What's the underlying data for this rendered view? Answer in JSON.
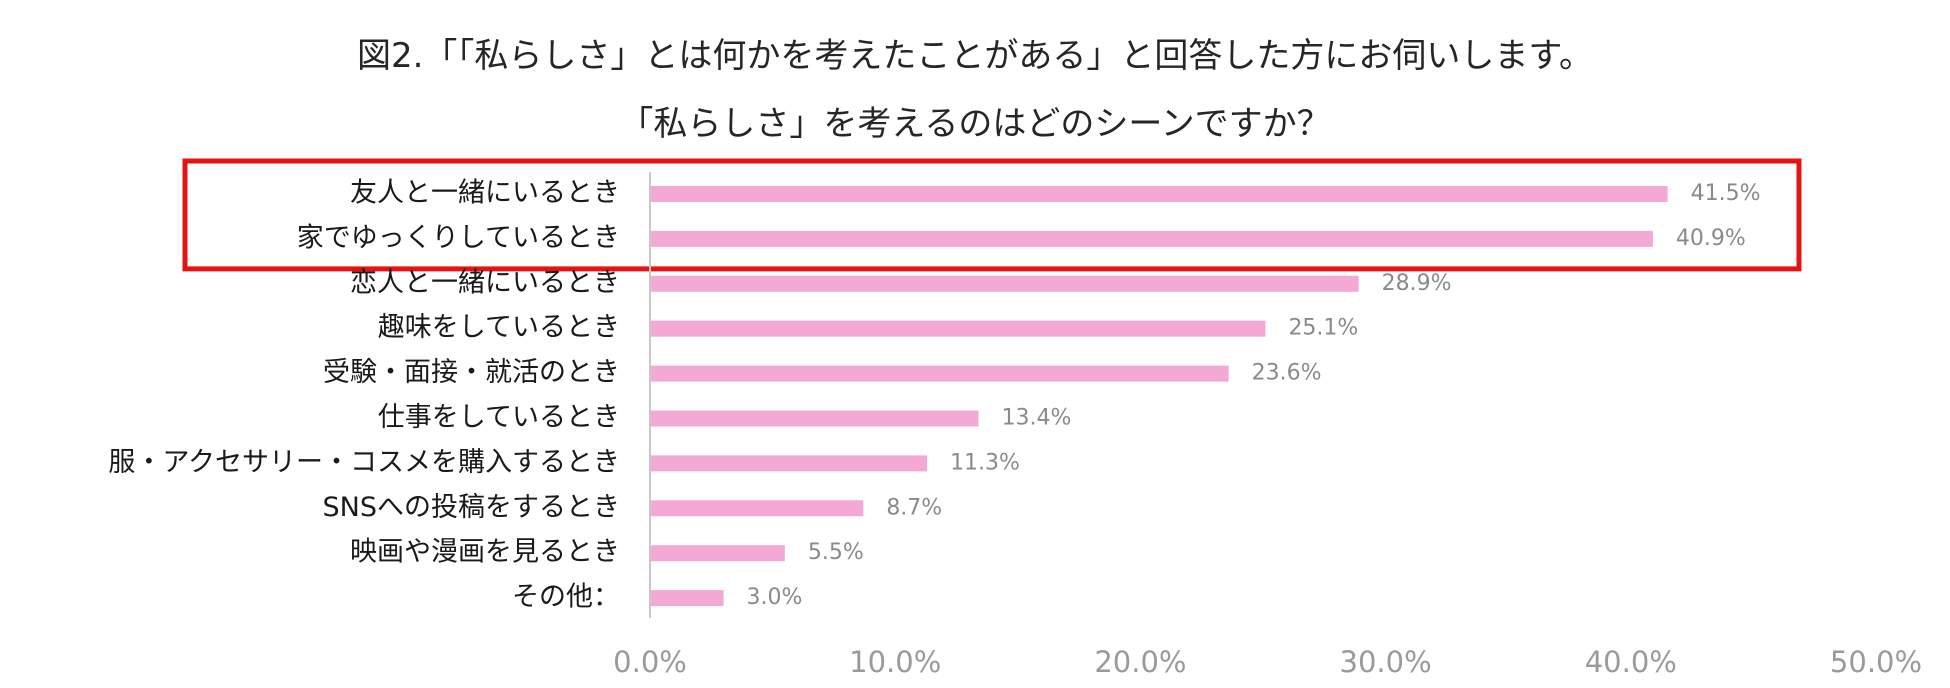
{
  "title_lines": [
    "図2.「「私らしさ」とは何かを考えたことがある」と回答した方にお伺いします。",
    "「私らしさ」を考えるのはどのシーンですか？"
  ],
  "colors": {
    "bar": "#f4a9d4",
    "highlight_box": "#e31414",
    "axis_line": "#c8c8c8"
  },
  "chart_data": {
    "type": "bar",
    "orientation": "horizontal",
    "categories": [
      "友人と一緒にいるとき",
      "家でゆっくりしているとき",
      "恋人と一緒にいるとき",
      "趣味をしているとき",
      "受験・面接・就活のとき",
      "仕事をしているとき",
      "服・アクセサリー・コスメを購入するとき",
      "SNSへの投稿をするとき",
      "映画や漫画を見るとき",
      "その他："
    ],
    "values": [
      41.5,
      40.9,
      28.9,
      25.1,
      23.6,
      13.4,
      11.3,
      8.7,
      5.5,
      3.0
    ],
    "value_labels": [
      "41.5%",
      "40.9%",
      "28.9%",
      "25.1%",
      "23.6%",
      "13.4%",
      "11.3%",
      "8.7%",
      "5.5%",
      "3.0%"
    ],
    "xlim": [
      0,
      50
    ],
    "x_ticks": [
      0,
      10,
      20,
      30,
      40,
      50
    ],
    "x_tick_labels": [
      "0.0%",
      "10.0%",
      "20.0%",
      "30.0%",
      "40.0%",
      "50.0%"
    ],
    "highlighted_categories": [
      "友人と一緒にいるとき",
      "家でゆっくりしているとき"
    ],
    "grid": false,
    "legend": "none"
  }
}
